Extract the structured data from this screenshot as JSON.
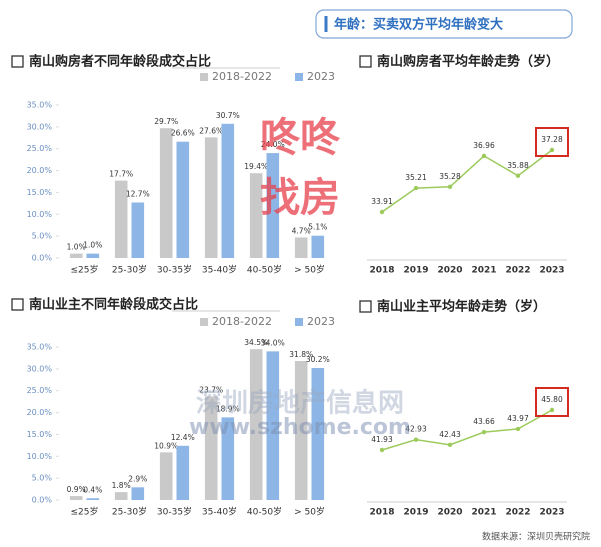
{
  "header": {
    "title": "年龄：买卖双方平均年龄变大"
  },
  "chart_data": [
    {
      "type": "bar",
      "title": "南山购房者不同年龄段成交占比",
      "categories": [
        "≤25岁",
        "25-30岁",
        "30-35岁",
        "35-40岁",
        "40-50岁",
        "> 50岁"
      ],
      "series": [
        {
          "name": "2018-2022",
          "color": "#c9c9c9",
          "values": [
            1.0,
            17.7,
            29.7,
            27.6,
            19.4,
            4.7
          ],
          "value_labels": [
            "1.0%",
            "17.7%",
            "29.7%",
            "27.6%",
            "19.4%",
            "4.7%"
          ]
        },
        {
          "name": "2023",
          "color": "#8db6e6",
          "values": [
            1.0,
            12.7,
            26.6,
            30.7,
            24.0,
            5.1
          ],
          "value_labels": [
            "1.0%",
            "12.7%",
            "26.6%",
            "30.7%",
            "24.0%",
            "5.1%"
          ]
        }
      ],
      "ylim": [
        0,
        35
      ],
      "yticks": [
        {
          "value": 0,
          "label": "0.0%"
        },
        {
          "value": 5,
          "label": "5.0%"
        },
        {
          "value": 10,
          "label": "10.0%"
        },
        {
          "value": 15,
          "label": "15.0%"
        },
        {
          "value": 20,
          "label": "20.0%"
        },
        {
          "value": 25,
          "label": "25.0%"
        },
        {
          "value": 30,
          "label": "30.0%"
        },
        {
          "value": 35,
          "label": "35.0%"
        }
      ]
    },
    {
      "type": "line",
      "title": "南山购房者平均年龄走势（岁）",
      "categories": [
        "2018",
        "2019",
        "2020",
        "2021",
        "2022",
        "2023"
      ],
      "values": [
        33.91,
        35.21,
        35.28,
        36.96,
        35.88,
        37.28
      ],
      "color": "#9ccb5c",
      "highlight_index": 5
    },
    {
      "type": "bar",
      "title": "南山业主不同年龄段成交占比",
      "categories": [
        "≤25岁",
        "25-30岁",
        "30-35岁",
        "35-40岁",
        "40-50岁",
        "> 50岁"
      ],
      "series": [
        {
          "name": "2018-2022",
          "color": "#c9c9c9",
          "values": [
            0.9,
            1.8,
            10.9,
            23.7,
            34.5,
            31.8
          ],
          "value_labels": [
            "0.9%",
            "1.8%",
            "10.9%",
            "23.7%",
            "34.5%",
            "31.8%"
          ]
        },
        {
          "name": "2023",
          "color": "#8db6e6",
          "values": [
            0.4,
            2.9,
            12.4,
            18.9,
            34.0,
            30.2
          ],
          "value_labels": [
            "0.4%",
            "2.9%",
            "12.4%",
            "18.9%",
            "34.0%",
            "30.2%"
          ]
        }
      ],
      "ylim": [
        0,
        35
      ],
      "yticks": [
        {
          "value": 0,
          "label": "0.0%"
        },
        {
          "value": 5,
          "label": "5.0%"
        },
        {
          "value": 10,
          "label": "10.0%"
        },
        {
          "value": 15,
          "label": "15.0%"
        },
        {
          "value": 20,
          "label": "20.0%"
        },
        {
          "value": 25,
          "label": "25.0%"
        },
        {
          "value": 30,
          "label": "30.0%"
        },
        {
          "value": 35,
          "label": "35.0%"
        }
      ]
    },
    {
      "type": "line",
      "title": "南山业主平均年龄走势（岁）",
      "categories": [
        "2018",
        "2019",
        "2020",
        "2021",
        "2022",
        "2023"
      ],
      "values": [
        41.93,
        42.93,
        42.43,
        43.66,
        43.97,
        45.8
      ],
      "value_labels": [
        "41.93",
        "42.93",
        "42.43",
        "43.66",
        "43.97",
        "45.80"
      ],
      "color": "#9ccb5c",
      "highlight_index": 5
    }
  ],
  "watermarks": [
    "咚咚",
    "找房",
    "深圳房地产信息网",
    "www.szhome.com"
  ],
  "source": "数据来源：深圳贝壳研究院"
}
